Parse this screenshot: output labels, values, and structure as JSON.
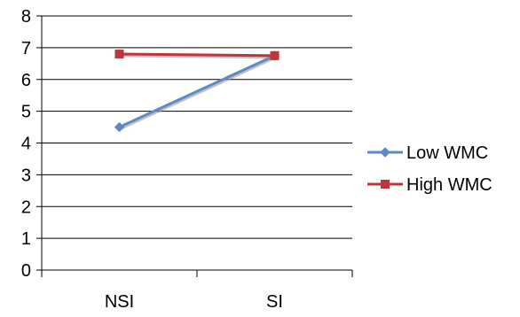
{
  "chart_data": {
    "type": "line",
    "title": "",
    "xlabel": "",
    "ylabel": "",
    "categories": [
      "NSI",
      "SI"
    ],
    "ylim": [
      0,
      8
    ],
    "yticks": [
      0,
      1,
      2,
      3,
      4,
      5,
      6,
      7,
      8
    ],
    "grid": true,
    "legend_position": "right",
    "series": [
      {
        "name": "Low WMC",
        "values": [
          4.5,
          6.75
        ],
        "color": "#5b8ac6",
        "marker": "diamond"
      },
      {
        "name": "High WMC",
        "values": [
          6.8,
          6.75
        ],
        "color": "#c0343c",
        "marker": "square"
      }
    ]
  }
}
